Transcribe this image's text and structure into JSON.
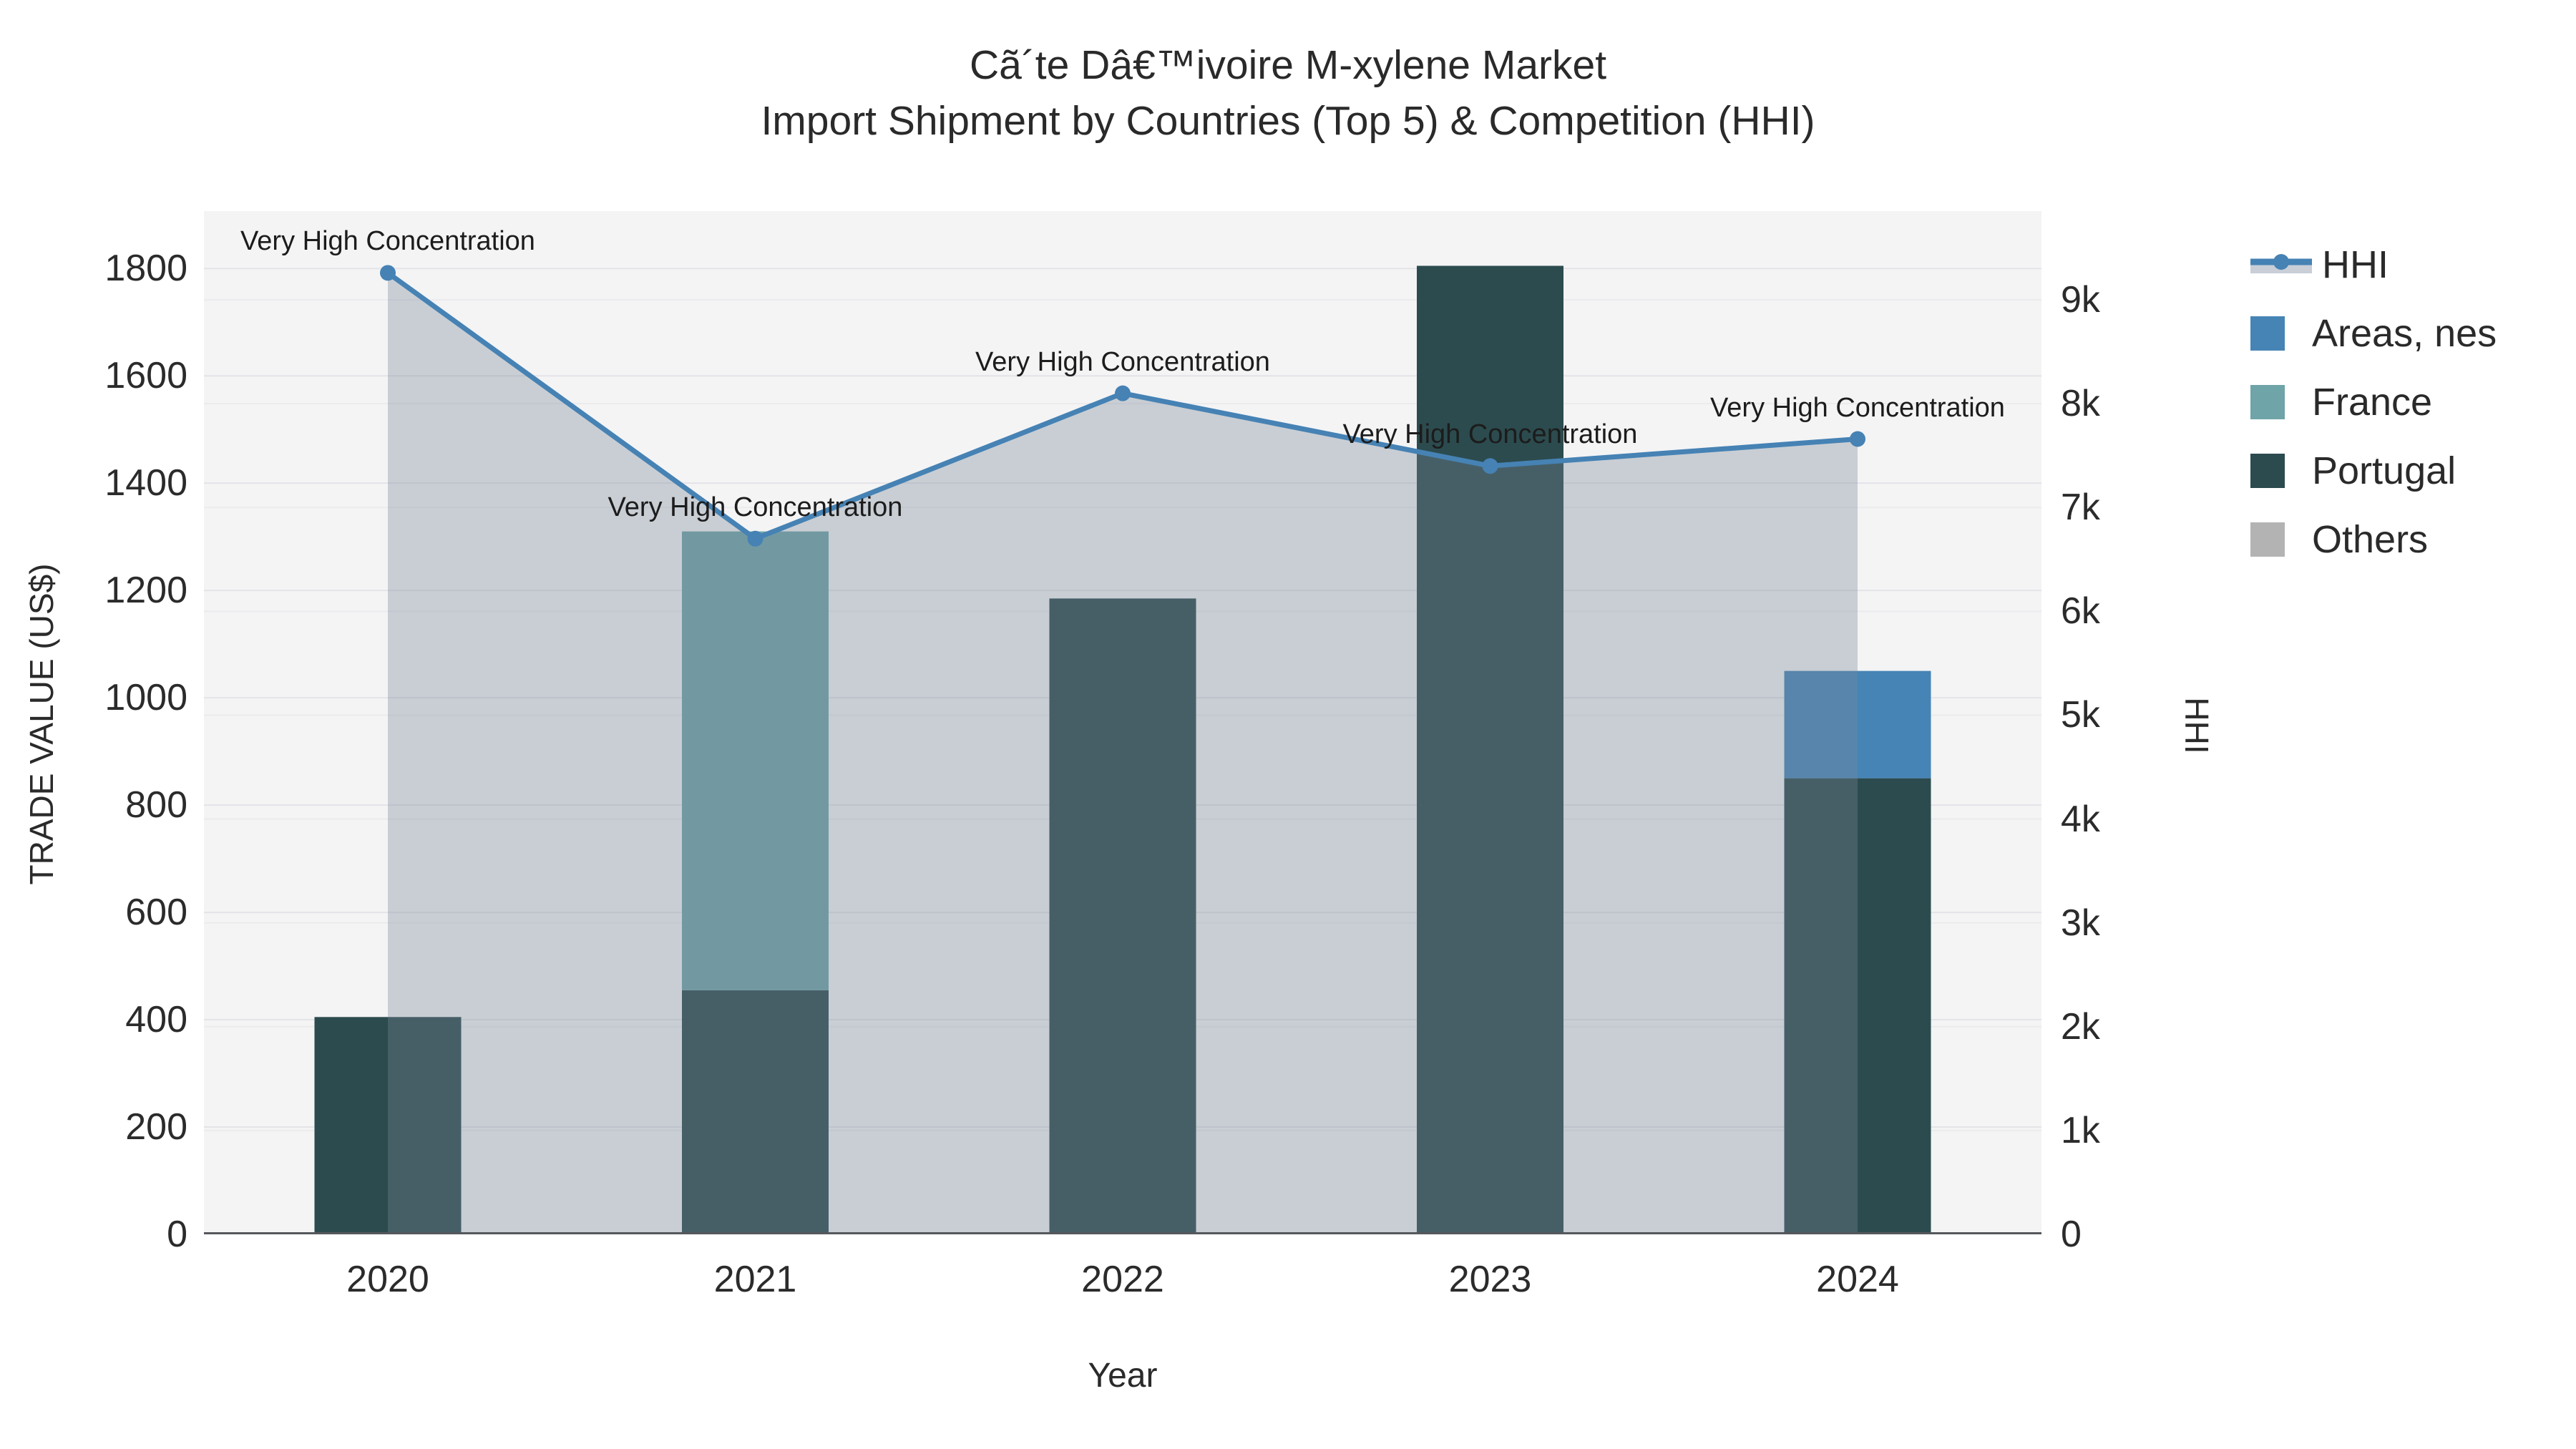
{
  "title": {
    "line1": "Cã´te Dâ€™ivoire M-xylene Market",
    "line2": "Import Shipment by Countries (Top 5) & Competition (HHI)"
  },
  "axes": {
    "x": {
      "title": "Year",
      "tick_labels": [
        "2020",
        "2021",
        "2022",
        "2023",
        "2024"
      ]
    },
    "left": {
      "title": "TRADE VALUE (US$)",
      "tick_labels": [
        "0",
        "200",
        "400",
        "600",
        "800",
        "1000",
        "1200",
        "1400",
        "1600",
        "1800"
      ],
      "tick_values": [
        0,
        200,
        400,
        600,
        800,
        1000,
        1200,
        1400,
        1600,
        1800
      ]
    },
    "right": {
      "title": "HHI",
      "tick_labels": [
        "0",
        "1k",
        "2k",
        "3k",
        "4k",
        "5k",
        "6k",
        "7k",
        "8k",
        "9k"
      ],
      "tick_values": [
        0,
        1000,
        2000,
        3000,
        4000,
        5000,
        6000,
        7000,
        8000,
        9000
      ]
    }
  },
  "legend": {
    "items": [
      {
        "label": "HHI",
        "type": "line",
        "color": "#4682B4",
        "band_color": "#C9CED7"
      },
      {
        "label": "Areas, nes",
        "type": "square",
        "color": "#4684B6"
      },
      {
        "label": "France",
        "type": "square",
        "color": "#6FA4A8"
      },
      {
        "label": "Portugal",
        "type": "square",
        "color": "#2C4B4E"
      },
      {
        "label": "Others",
        "type": "square",
        "color": "#B3B3B3"
      }
    ]
  },
  "chart_data": {
    "type": "combo: stacked bar (left axis) + line with area fill (right axis)",
    "categories": [
      "2020",
      "2021",
      "2022",
      "2023",
      "2024"
    ],
    "bar_series": [
      {
        "name": "Portugal",
        "color": "#2C4B4E",
        "values": [
          405,
          455,
          1185,
          1805,
          850
        ]
      },
      {
        "name": "France",
        "color": "#6FA4A8",
        "values": [
          0,
          855,
          0,
          0,
          0
        ]
      },
      {
        "name": "Areas, nes",
        "color": "#4684B6",
        "values": [
          0,
          0,
          0,
          0,
          200
        ]
      },
      {
        "name": "Others",
        "color": "#B3B3B3",
        "values": [
          0,
          0,
          0,
          0,
          0
        ]
      }
    ],
    "line_series": {
      "name": "HHI",
      "color": "#4682B4",
      "fill_color": "#778899",
      "fill_opacity": 0.35,
      "values": [
        9260,
        6700,
        8100,
        7400,
        7660
      ]
    },
    "annotations": [
      {
        "text": "Very High Concentration",
        "category": "2020"
      },
      {
        "text": "Very High Concentration",
        "category": "2021"
      },
      {
        "text": "Very High Concentration",
        "category": "2022"
      },
      {
        "text": "Very High Concentration",
        "category": "2023"
      },
      {
        "text": "Very High Concentration",
        "category": "2024"
      }
    ],
    "xlabel": "Year",
    "ylabel_left": "TRADE VALUE (US$)",
    "ylabel_right": "HHI",
    "ylim_left": [
      0,
      1907
    ],
    "ylim_right": [
      0,
      9855
    ],
    "grid": true,
    "legend_position": "right",
    "stack_order": "Portugal (bottom), France, Areas nes (top)"
  },
  "colors": {
    "plot_bg": "#f4f4f5",
    "grid_left": "#e4e4e8",
    "grid_right": "#ebebee",
    "axis_line": "#55585c",
    "text": "#2a2a2a"
  }
}
